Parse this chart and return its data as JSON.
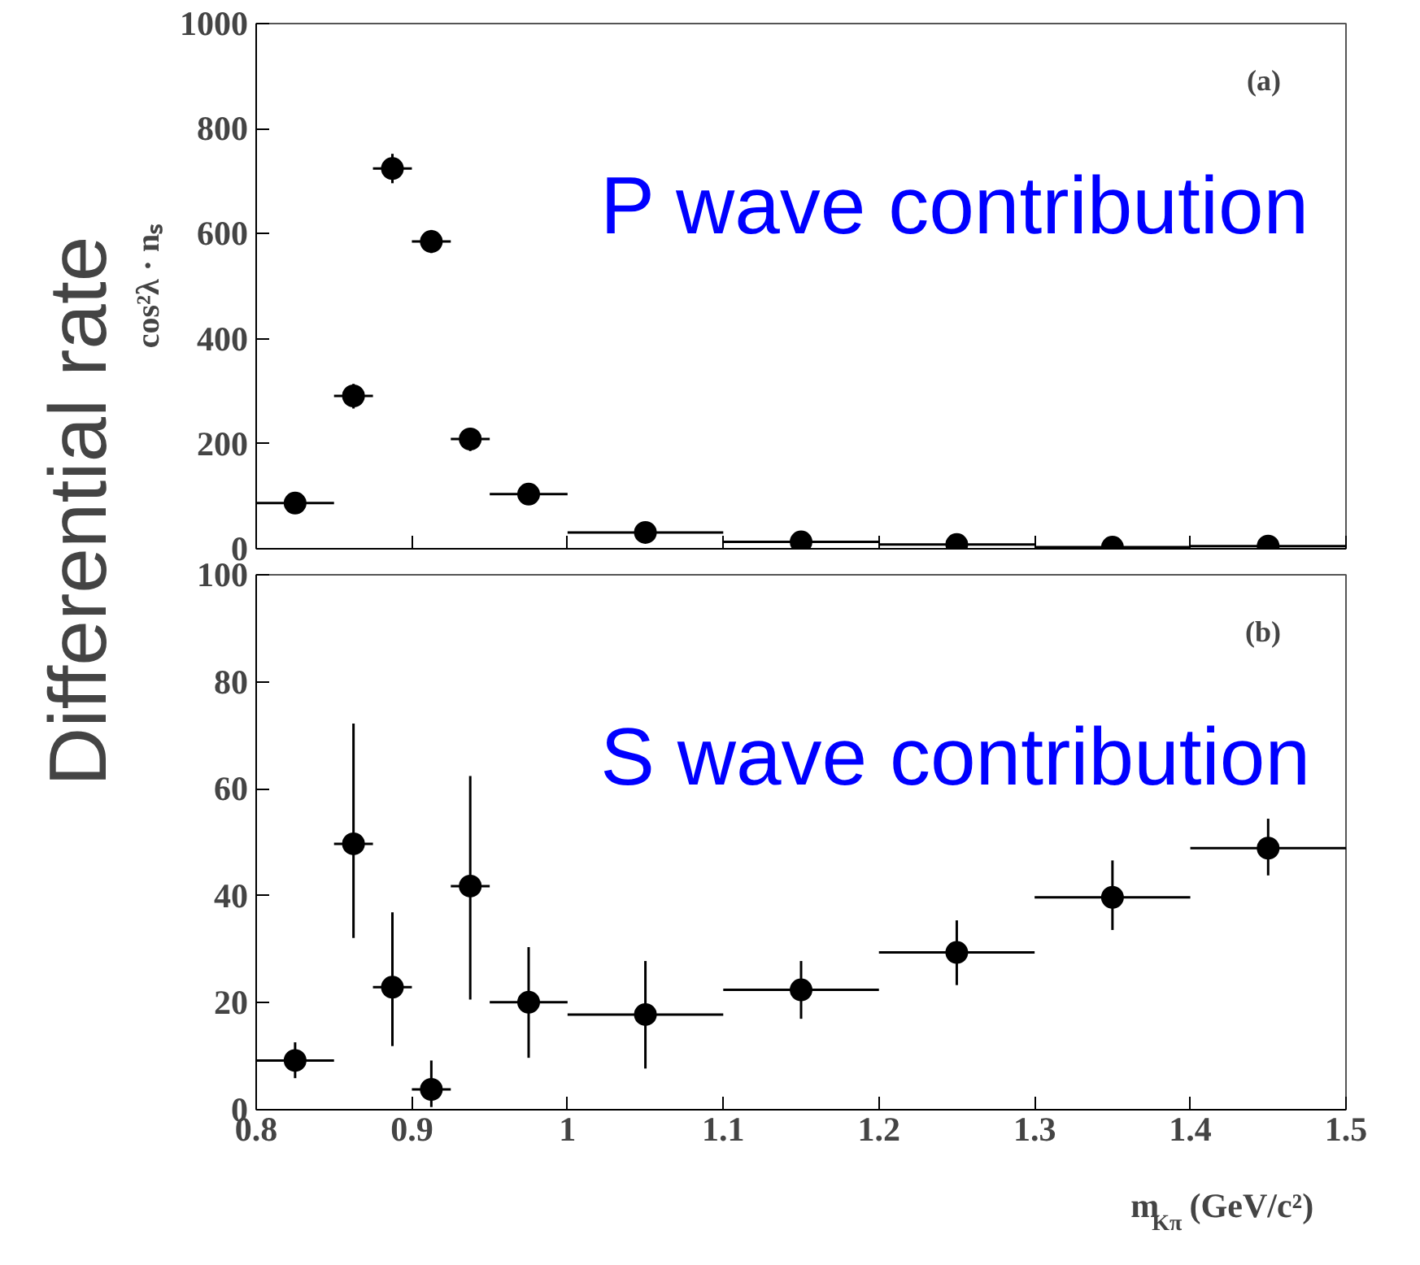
{
  "chart_data": [
    {
      "type": "scatter",
      "ylabel": "cos²λ · nₛ",
      "x": [
        0.825,
        0.8625,
        0.8875,
        0.9125,
        0.9375,
        0.975,
        1.05,
        1.15,
        1.25,
        1.35,
        1.45
      ],
      "series": [
        {
          "color": "#000000",
          "values": [
            87,
            291,
            724,
            585,
            209,
            104,
            31,
            13,
            8,
            3,
            5
          ],
          "errors": [
            null,
            [
              267,
              314
            ],
            [
              696,
              752
            ],
            [
              563,
              607
            ],
            [
              186,
              230
            ],
            null,
            null,
            null,
            null,
            null,
            null
          ],
          "xerrors": [
            0.025,
            0.0125,
            0.0125,
            0.0125,
            0.0125,
            0.025,
            0.05,
            0.05,
            0.05,
            0.05,
            0.05
          ]
        }
      ],
      "xlim": [
        0.8,
        1.5
      ],
      "ylim": [
        0,
        1000
      ],
      "xticks": [
        0.8,
        0.9,
        1,
        1.1,
        1.2,
        1.3,
        1.4,
        1.5
      ],
      "yticks": [
        0,
        200,
        400,
        600,
        800,
        1000
      ],
      "tick_labels": "y",
      "marker": "circle",
      "annotations": [
        "(a)",
        "P wave contribution",
        "Differential rate"
      ]
    },
    {
      "type": "scatter",
      "xlabel": "m$_{Kπ}$ (GeV/c²)",
      "x": [
        0.825,
        0.8625,
        0.8875,
        0.9125,
        0.9375,
        0.975,
        1.05,
        1.15,
        1.25,
        1.35,
        1.45
      ],
      "series": [
        {
          "color": "#000000",
          "values": [
            9.2,
            49.7,
            22.9,
            3.8,
            41.8,
            20.1,
            17.8,
            22.4,
            29.4,
            39.7,
            48.9
          ],
          "errors": [
            [
              5.9,
              12.6
            ],
            [
              32.1,
              72.2
            ],
            [
              11.9,
              36.9
            ],
            [
              0.5,
              9.2
            ],
            [
              20.6,
              62.4
            ],
            [
              9.7,
              30.4
            ],
            [
              7.7,
              27.8
            ],
            [
              17.0,
              27.8
            ],
            [
              23.3,
              35.4
            ],
            [
              33.6,
              46.6
            ],
            [
              43.8,
              54.4
            ]
          ],
          "xerrors": [
            0.025,
            0.0125,
            0.0125,
            0.0125,
            0.0125,
            0.025,
            0.05,
            0.05,
            0.05,
            0.05,
            0.05
          ]
        }
      ],
      "xlim": [
        0.8,
        1.5
      ],
      "ylim": [
        0,
        100
      ],
      "xticks": [
        0.8,
        0.9,
        1,
        1.1,
        1.2,
        1.3,
        1.4,
        1.5
      ],
      "yticks": [
        0,
        20,
        40,
        60,
        80,
        100
      ],
      "marker": "circle",
      "annotations": [
        "(b)",
        "S wave contribution"
      ]
    }
  ]
}
